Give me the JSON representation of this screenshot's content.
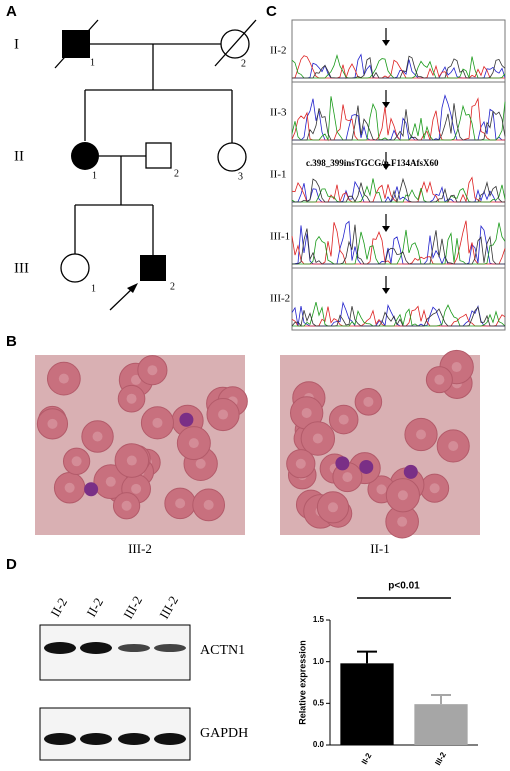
{
  "panels": [
    "A",
    "B",
    "C",
    "D"
  ],
  "pedigree": {
    "generations": [
      "I",
      "II",
      "III"
    ],
    "individuals": [
      "1",
      "2",
      "1",
      "2",
      "3",
      "1",
      "2"
    ]
  },
  "sequencing": {
    "rows": [
      "II-2",
      "II-3",
      "II-1",
      "III-1",
      "III-2"
    ],
    "mutation": "c.398_399insTGCG/p.F134AfsX60"
  },
  "smears": {
    "captions": [
      "III-2",
      "II-1"
    ]
  },
  "blot": {
    "lanes": [
      "II-2",
      "II-2",
      "III-2",
      "III-2"
    ],
    "proteins": [
      "ACTN1",
      "GAPDH"
    ]
  },
  "chart_data": {
    "type": "bar",
    "ylabel": "Relative expression",
    "annotation": "p<0.01",
    "categories": [
      "II-2",
      "III-2"
    ],
    "values": [
      0.98,
      0.49
    ],
    "errors": [
      0.14,
      0.11
    ],
    "colors": [
      "#000000",
      "#a6a6a6"
    ],
    "ylim": [
      0,
      1.5
    ],
    "yticks": [
      {
        "value": 0,
        "label": "0.0"
      },
      {
        "value": 0.5,
        "label": "0.5"
      },
      {
        "value": 1,
        "label": "1.0"
      },
      {
        "value": 1.5,
        "label": "1.5"
      }
    ]
  }
}
